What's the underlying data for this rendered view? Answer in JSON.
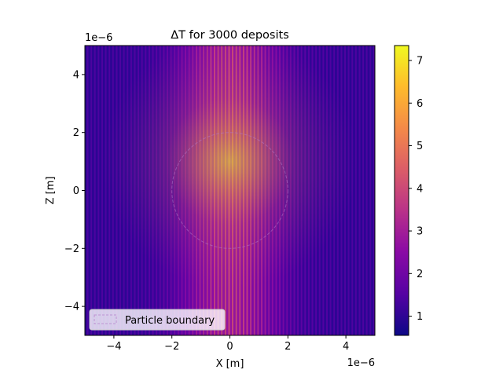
{
  "chart_data": {
    "type": "heatmap",
    "title": "ΔT for 3000 deposits",
    "xlabel": "X [m]",
    "ylabel": "Z [m]",
    "xlim": [
      -5e-06,
      5e-06
    ],
    "ylim": [
      -5e-06,
      5e-06
    ],
    "x_scale_label": "1e−6",
    "y_scale_label": "1e−6",
    "x_ticks": [
      -4,
      -2,
      0,
      2,
      4
    ],
    "x_tick_labels": [
      "−4",
      "−2",
      "0",
      "2",
      "4"
    ],
    "y_ticks": [
      -4,
      -2,
      0,
      2,
      4
    ],
    "y_tick_labels": [
      "−4",
      "−2",
      "0",
      "2",
      "4"
    ],
    "colormap": "plasma",
    "color_range": [
      0.55,
      7.35
    ],
    "colorbar_ticks": [
      1,
      2,
      3,
      4,
      5,
      6,
      7
    ],
    "colorbar_tick_labels": [
      "1",
      "2",
      "3",
      "4",
      "5",
      "6",
      "7"
    ],
    "field": {
      "center_x": 0.0,
      "center_z": 1e-06,
      "peak_value": 7.3,
      "background_value": 1.0,
      "stripe_count": 80
    },
    "particle_boundary": {
      "shape": "circle",
      "center_x": 0.0,
      "center_z": 0.0,
      "radius": 2e-06,
      "line_style": "dashed"
    },
    "legend": {
      "placement": "lower-left",
      "entries": [
        "Particle boundary"
      ]
    }
  }
}
